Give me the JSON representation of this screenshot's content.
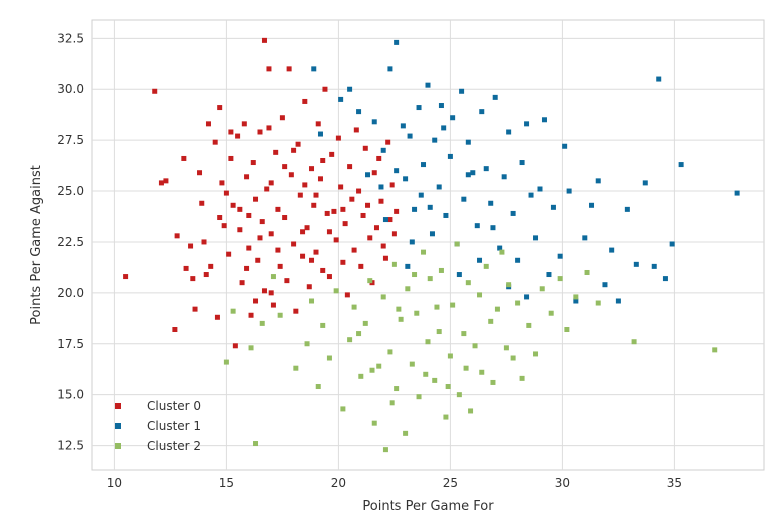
{
  "chart_data": {
    "type": "scatter",
    "xlabel": "Points Per Game For",
    "ylabel": "Points Per Game Against",
    "xlim": [
      9.0,
      39.0
    ],
    "ylim": [
      11.3,
      33.4
    ],
    "xticks": [
      "10",
      "15",
      "20",
      "25",
      "30",
      "35"
    ],
    "yticks": [
      "12.5",
      "15.0",
      "17.5",
      "20.0",
      "22.5",
      "25.0",
      "27.5",
      "30.0",
      "32.5"
    ],
    "grid": true,
    "legend_position": "bottom-left",
    "series": [
      {
        "name": "Cluster 0",
        "color": "#c41e1e",
        "points": [
          [
            10.5,
            20.8
          ],
          [
            11.8,
            29.9
          ],
          [
            12.1,
            25.4
          ],
          [
            12.3,
            25.5
          ],
          [
            12.7,
            18.2
          ],
          [
            12.8,
            22.8
          ],
          [
            13.1,
            26.6
          ],
          [
            13.2,
            21.2
          ],
          [
            13.4,
            22.3
          ],
          [
            13.5,
            20.7
          ],
          [
            13.6,
            19.2
          ],
          [
            13.8,
            25.9
          ],
          [
            13.9,
            24.4
          ],
          [
            14.0,
            22.5
          ],
          [
            14.1,
            20.9
          ],
          [
            14.2,
            28.3
          ],
          [
            14.3,
            21.3
          ],
          [
            14.5,
            27.4
          ],
          [
            14.6,
            18.8
          ],
          [
            14.7,
            29.1
          ],
          [
            14.8,
            25.4
          ],
          [
            14.9,
            23.3
          ],
          [
            15.0,
            24.9
          ],
          [
            15.1,
            21.9
          ],
          [
            15.2,
            26.6
          ],
          [
            15.3,
            24.3
          ],
          [
            15.4,
            17.4
          ],
          [
            15.5,
            27.7
          ],
          [
            15.6,
            23.1
          ],
          [
            15.7,
            20.5
          ],
          [
            15.8,
            28.3
          ],
          [
            15.9,
            25.7
          ],
          [
            16.0,
            22.2
          ],
          [
            16.1,
            18.9
          ],
          [
            16.2,
            26.4
          ],
          [
            16.3,
            24.6
          ],
          [
            16.4,
            21.6
          ],
          [
            16.5,
            27.9
          ],
          [
            16.6,
            23.5
          ],
          [
            16.7,
            32.4
          ],
          [
            16.7,
            20.1
          ],
          [
            16.8,
            25.1
          ],
          [
            16.9,
            31.0
          ],
          [
            17.0,
            22.9
          ],
          [
            17.1,
            19.4
          ],
          [
            17.2,
            26.9
          ],
          [
            17.3,
            24.1
          ],
          [
            17.4,
            21.3
          ],
          [
            17.5,
            28.6
          ],
          [
            17.6,
            23.7
          ],
          [
            17.7,
            20.6
          ],
          [
            17.8,
            31.0
          ],
          [
            17.9,
            25.8
          ],
          [
            18.0,
            22.4
          ],
          [
            18.1,
            19.1
          ],
          [
            18.2,
            27.3
          ],
          [
            18.3,
            24.8
          ],
          [
            18.4,
            21.8
          ],
          [
            18.5,
            29.4
          ],
          [
            18.6,
            23.2
          ],
          [
            18.7,
            20.3
          ],
          [
            18.8,
            26.1
          ],
          [
            18.9,
            24.3
          ],
          [
            19.0,
            22.0
          ],
          [
            19.1,
            28.3
          ],
          [
            19.2,
            25.6
          ],
          [
            19.3,
            21.1
          ],
          [
            19.4,
            30.0
          ],
          [
            19.5,
            23.9
          ],
          [
            19.6,
            20.8
          ],
          [
            19.7,
            26.8
          ],
          [
            19.8,
            24.0
          ],
          [
            19.9,
            22.6
          ],
          [
            20.0,
            27.6
          ],
          [
            20.1,
            25.2
          ],
          [
            20.2,
            21.5
          ],
          [
            20.3,
            23.4
          ],
          [
            20.4,
            19.9
          ],
          [
            20.5,
            26.2
          ],
          [
            20.6,
            24.6
          ],
          [
            20.7,
            22.1
          ],
          [
            20.8,
            28.0
          ],
          [
            20.9,
            25.0
          ],
          [
            21.0,
            21.3
          ],
          [
            21.1,
            23.8
          ],
          [
            21.2,
            27.1
          ],
          [
            21.3,
            24.3
          ],
          [
            21.4,
            22.7
          ],
          [
            21.5,
            20.5
          ],
          [
            21.6,
            25.9
          ],
          [
            21.7,
            23.2
          ],
          [
            21.8,
            26.6
          ],
          [
            21.9,
            24.5
          ],
          [
            22.0,
            22.3
          ],
          [
            22.1,
            21.7
          ],
          [
            22.2,
            27.4
          ],
          [
            22.3,
            23.6
          ],
          [
            22.4,
            25.3
          ],
          [
            22.5,
            22.9
          ],
          [
            22.6,
            24.0
          ],
          [
            15.2,
            27.9
          ],
          [
            16.0,
            23.8
          ],
          [
            17.0,
            25.4
          ],
          [
            18.4,
            23.0
          ],
          [
            19.0,
            24.8
          ],
          [
            16.5,
            22.7
          ],
          [
            17.6,
            26.2
          ],
          [
            18.8,
            21.6
          ],
          [
            15.6,
            24.1
          ],
          [
            14.7,
            23.7
          ],
          [
            16.9,
            28.1
          ],
          [
            18.0,
            27.0
          ],
          [
            17.3,
            22.1
          ],
          [
            19.6,
            23.0
          ],
          [
            20.2,
            24.1
          ],
          [
            15.9,
            21.2
          ],
          [
            18.5,
            25.3
          ],
          [
            17.0,
            20.0
          ],
          [
            16.3,
            19.6
          ],
          [
            19.3,
            26.5
          ]
        ]
      },
      {
        "name": "Cluster 1",
        "color": "#0d6a9c",
        "points": [
          [
            18.9,
            31.0
          ],
          [
            19.2,
            27.8
          ],
          [
            20.1,
            29.5
          ],
          [
            20.5,
            30.0
          ],
          [
            20.9,
            28.9
          ],
          [
            21.3,
            25.8
          ],
          [
            21.6,
            28.4
          ],
          [
            22.0,
            27.0
          ],
          [
            22.3,
            31.0
          ],
          [
            22.6,
            32.3
          ],
          [
            22.9,
            28.2
          ],
          [
            23.0,
            25.6
          ],
          [
            23.2,
            27.7
          ],
          [
            23.4,
            24.1
          ],
          [
            23.6,
            29.1
          ],
          [
            23.8,
            26.3
          ],
          [
            24.0,
            30.2
          ],
          [
            24.2,
            22.9
          ],
          [
            24.3,
            27.5
          ],
          [
            24.5,
            25.2
          ],
          [
            24.6,
            29.2
          ],
          [
            24.8,
            23.8
          ],
          [
            25.0,
            26.7
          ],
          [
            25.1,
            28.6
          ],
          [
            25.3,
            22.4
          ],
          [
            25.5,
            29.9
          ],
          [
            25.6,
            24.6
          ],
          [
            25.8,
            27.4
          ],
          [
            26.0,
            25.9
          ],
          [
            26.2,
            23.3
          ],
          [
            26.4,
            28.9
          ],
          [
            26.6,
            26.1
          ],
          [
            26.8,
            24.4
          ],
          [
            27.0,
            29.6
          ],
          [
            27.2,
            22.2
          ],
          [
            27.4,
            25.7
          ],
          [
            27.6,
            27.9
          ],
          [
            27.8,
            23.9
          ],
          [
            28.0,
            21.6
          ],
          [
            28.2,
            26.4
          ],
          [
            28.4,
            28.3
          ],
          [
            28.6,
            24.8
          ],
          [
            28.8,
            22.7
          ],
          [
            29.0,
            25.1
          ],
          [
            29.2,
            28.5
          ],
          [
            29.4,
            20.9
          ],
          [
            29.6,
            24.2
          ],
          [
            29.9,
            21.8
          ],
          [
            30.1,
            27.2
          ],
          [
            30.3,
            25.0
          ],
          [
            30.6,
            19.6
          ],
          [
            31.0,
            22.7
          ],
          [
            31.3,
            24.3
          ],
          [
            31.6,
            25.5
          ],
          [
            31.9,
            20.4
          ],
          [
            32.2,
            22.1
          ],
          [
            32.5,
            19.6
          ],
          [
            32.9,
            24.1
          ],
          [
            33.3,
            21.4
          ],
          [
            33.7,
            25.4
          ],
          [
            34.1,
            21.3
          ],
          [
            34.3,
            30.5
          ],
          [
            34.6,
            20.7
          ],
          [
            34.9,
            22.4
          ],
          [
            35.3,
            26.3
          ],
          [
            37.8,
            24.9
          ],
          [
            22.1,
            23.6
          ],
          [
            23.1,
            21.3
          ],
          [
            24.1,
            24.2
          ],
          [
            25.4,
            20.9
          ],
          [
            26.3,
            21.6
          ],
          [
            27.6,
            20.3
          ],
          [
            28.4,
            19.8
          ],
          [
            22.6,
            26.0
          ],
          [
            23.7,
            24.8
          ],
          [
            25.8,
            25.8
          ],
          [
            26.9,
            23.2
          ],
          [
            24.7,
            28.1
          ],
          [
            21.9,
            25.2
          ],
          [
            23.3,
            22.5
          ]
        ]
      },
      {
        "name": "Cluster 2",
        "color": "#94bc62",
        "points": [
          [
            15.0,
            16.6
          ],
          [
            15.3,
            19.1
          ],
          [
            16.1,
            17.3
          ],
          [
            16.3,
            12.6
          ],
          [
            16.6,
            18.5
          ],
          [
            17.1,
            20.8
          ],
          [
            17.4,
            18.9
          ],
          [
            18.1,
            16.3
          ],
          [
            18.6,
            17.5
          ],
          [
            18.8,
            19.6
          ],
          [
            19.1,
            15.4
          ],
          [
            19.3,
            18.4
          ],
          [
            19.6,
            16.8
          ],
          [
            19.9,
            20.1
          ],
          [
            20.2,
            14.3
          ],
          [
            20.5,
            17.7
          ],
          [
            20.7,
            19.3
          ],
          [
            21.0,
            15.9
          ],
          [
            21.2,
            18.5
          ],
          [
            21.4,
            20.6
          ],
          [
            21.6,
            13.6
          ],
          [
            21.8,
            16.4
          ],
          [
            22.0,
            19.8
          ],
          [
            22.1,
            12.3
          ],
          [
            22.3,
            17.1
          ],
          [
            22.5,
            21.4
          ],
          [
            22.6,
            15.3
          ],
          [
            22.8,
            18.7
          ],
          [
            23.0,
            13.1
          ],
          [
            23.1,
            20.2
          ],
          [
            23.3,
            16.5
          ],
          [
            23.5,
            19.0
          ],
          [
            23.6,
            14.9
          ],
          [
            23.8,
            22.0
          ],
          [
            24.0,
            17.6
          ],
          [
            24.1,
            20.7
          ],
          [
            24.3,
            15.7
          ],
          [
            24.5,
            18.1
          ],
          [
            24.6,
            21.1
          ],
          [
            24.8,
            13.9
          ],
          [
            25.0,
            16.9
          ],
          [
            25.1,
            19.4
          ],
          [
            25.3,
            22.4
          ],
          [
            25.4,
            15.0
          ],
          [
            25.6,
            18.0
          ],
          [
            25.8,
            20.5
          ],
          [
            25.9,
            14.2
          ],
          [
            26.1,
            17.4
          ],
          [
            26.3,
            19.9
          ],
          [
            26.4,
            16.1
          ],
          [
            26.6,
            21.3
          ],
          [
            26.8,
            18.6
          ],
          [
            26.9,
            15.6
          ],
          [
            27.1,
            19.2
          ],
          [
            27.3,
            22.0
          ],
          [
            27.5,
            17.3
          ],
          [
            27.6,
            20.4
          ],
          [
            27.8,
            16.8
          ],
          [
            28.0,
            19.5
          ],
          [
            28.2,
            15.8
          ],
          [
            28.5,
            18.4
          ],
          [
            28.8,
            17.0
          ],
          [
            29.1,
            20.2
          ],
          [
            29.5,
            19.0
          ],
          [
            29.9,
            20.7
          ],
          [
            30.2,
            18.2
          ],
          [
            30.6,
            19.8
          ],
          [
            31.1,
            21.0
          ],
          [
            31.6,
            19.5
          ],
          [
            33.2,
            17.6
          ],
          [
            36.8,
            17.2
          ],
          [
            22.4,
            14.6
          ],
          [
            23.9,
            16.0
          ],
          [
            24.9,
            15.4
          ],
          [
            20.9,
            18.0
          ],
          [
            21.5,
            16.2
          ],
          [
            22.7,
            19.2
          ],
          [
            23.4,
            20.9
          ],
          [
            24.4,
            19.3
          ],
          [
            25.7,
            16.3
          ]
        ]
      }
    ]
  }
}
